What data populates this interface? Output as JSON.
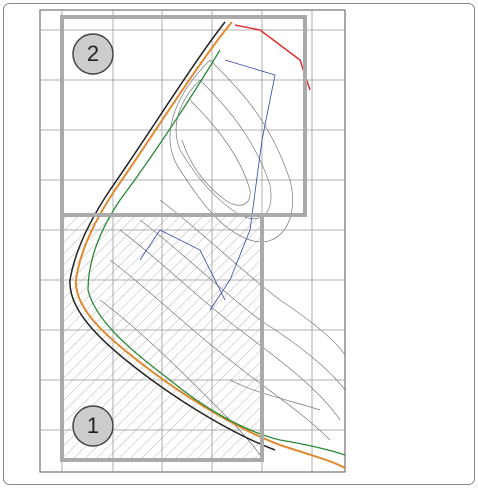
{
  "zones": [
    {
      "label": "1"
    },
    {
      "label": "2"
    }
  ]
}
